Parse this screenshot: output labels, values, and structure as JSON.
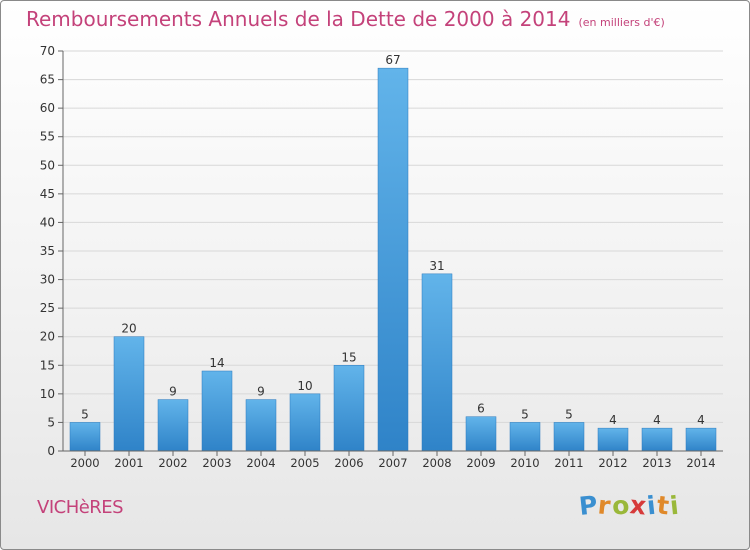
{
  "title": "Remboursements Annuels de la Dette de 2000 à 2014",
  "unit": "(en milliers d'€)",
  "place_name": "VICHèRES",
  "logo": {
    "letters": [
      "P",
      "r",
      "o",
      "x",
      "i",
      "t",
      "i"
    ],
    "colors": [
      "#3a8fd0",
      "#e0892a",
      "#9ab83a",
      "#d63a3a",
      "#3a8fd0",
      "#e0892a",
      "#9ab83a"
    ]
  },
  "colors": {
    "title": "#c4427a",
    "bar_top": "#62b4ea",
    "bar_bottom": "#2f83c8",
    "grid": "#d8d8d8",
    "axis": "#666666"
  },
  "chart_data": {
    "type": "bar",
    "categories": [
      "2000",
      "2001",
      "2002",
      "2003",
      "2004",
      "2005",
      "2006",
      "2007",
      "2008",
      "2009",
      "2010",
      "2011",
      "2012",
      "2013",
      "2014"
    ],
    "values": [
      5,
      20,
      9,
      14,
      9,
      10,
      15,
      67,
      31,
      6,
      5,
      5,
      4,
      4,
      4
    ],
    "data_labels": [
      "5",
      "20",
      "9",
      "14",
      "9",
      "10",
      "15",
      "67",
      "31",
      "6",
      "5",
      "5",
      "4",
      "4",
      "4"
    ],
    "ylim": [
      0,
      70
    ],
    "yticks": [
      0,
      5,
      10,
      15,
      20,
      25,
      30,
      35,
      40,
      45,
      50,
      55,
      60,
      65,
      70
    ],
    "grid": true,
    "legend": "none"
  }
}
